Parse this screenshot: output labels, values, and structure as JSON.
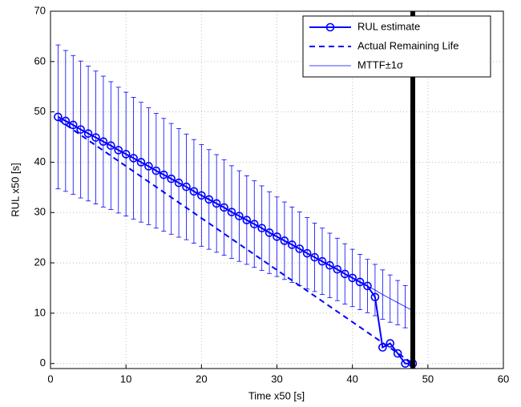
{
  "chart_data": {
    "type": "line",
    "xlabel": "Time x50 [s]",
    "ylabel": "RUL x50 [s]",
    "xlim": [
      0,
      60
    ],
    "ylim": [
      -1,
      70
    ],
    "xticks": [
      0,
      10,
      20,
      30,
      40,
      50,
      60
    ],
    "yticks": [
      0,
      10,
      20,
      30,
      40,
      50,
      60,
      70
    ],
    "grid": true,
    "legend_loc": "upper right",
    "vline_x": 48,
    "vline_color": "#000000",
    "x": [
      1,
      2,
      3,
      4,
      5,
      6,
      7,
      8,
      9,
      10,
      11,
      12,
      13,
      14,
      15,
      16,
      17,
      18,
      19,
      20,
      21,
      22,
      23,
      24,
      25,
      26,
      27,
      28,
      29,
      30,
      31,
      32,
      33,
      34,
      35,
      36,
      37,
      38,
      39,
      40,
      41,
      42,
      43,
      44,
      45,
      46,
      47,
      48
    ],
    "series": [
      {
        "name": "RUL estimate",
        "color": "#0000ff",
        "style": "marker-line",
        "values": [
          49.0,
          48.2,
          47.4,
          46.5,
          45.7,
          44.9,
          44.1,
          43.3,
          42.4,
          41.6,
          40.8,
          40.0,
          39.2,
          38.3,
          37.5,
          36.7,
          35.9,
          35.1,
          34.2,
          33.4,
          32.6,
          31.8,
          31.0,
          30.1,
          29.3,
          28.5,
          27.7,
          26.9,
          26.0,
          25.2,
          24.4,
          23.6,
          22.8,
          21.9,
          21.1,
          20.3,
          19.5,
          18.7,
          17.8,
          17.0,
          16.2,
          15.4,
          13.2,
          3.2,
          4.0,
          2.0,
          0,
          0
        ]
      },
      {
        "name": "Actual Remaining Life",
        "color": "#0000ff",
        "style": "dashed",
        "x": [
          1,
          48
        ],
        "values": [
          48.5,
          0
        ]
      },
      {
        "name": "MTTF±1σ",
        "color": "#0000ff",
        "style": "errorbar",
        "values": [
          49.0,
          48.2,
          47.4,
          46.5,
          45.7,
          44.9,
          44.1,
          43.3,
          42.4,
          41.6,
          40.8,
          40.0,
          39.2,
          38.3,
          37.5,
          36.7,
          35.9,
          35.1,
          34.2,
          33.4,
          32.6,
          31.8,
          31.0,
          30.1,
          29.3,
          28.5,
          27.7,
          26.9,
          26.0,
          25.2,
          24.4,
          23.6,
          22.8,
          21.9,
          21.1,
          20.3,
          19.5,
          18.7,
          17.8,
          17.0,
          16.2,
          15.4,
          14.6,
          13.7,
          12.9,
          12.1,
          11.3,
          10.5
        ],
        "errors": [
          14.3,
          14.0,
          13.8,
          13.6,
          13.4,
          13.2,
          13.0,
          12.7,
          12.5,
          12.3,
          12.1,
          11.9,
          11.6,
          11.4,
          11.2,
          11.0,
          10.8,
          10.5,
          10.3,
          10.1,
          9.9,
          9.7,
          9.5,
          9.2,
          9.0,
          8.8,
          8.6,
          8.4,
          8.1,
          7.9,
          7.7,
          7.5,
          7.3,
          7.1,
          6.8,
          6.6,
          6.4,
          6.2,
          6.0,
          5.7,
          5.5,
          5.3,
          5.1,
          4.9,
          4.7,
          4.4,
          4.2,
          4.0
        ]
      }
    ]
  }
}
